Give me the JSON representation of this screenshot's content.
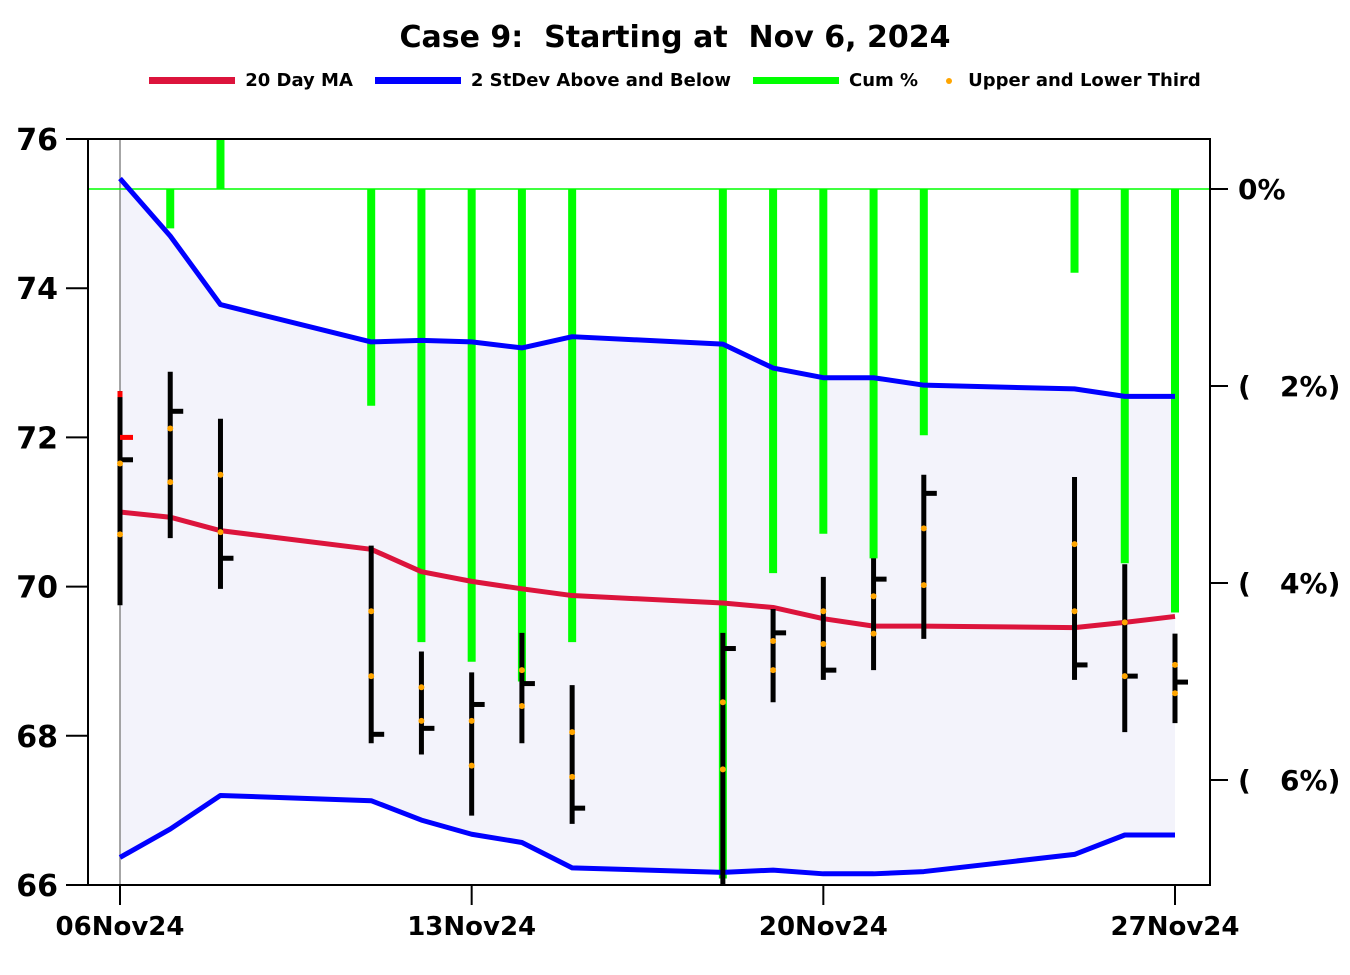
{
  "chart_data": {
    "type": "ohlc",
    "title": "Case 9:  Starting at  Nov 6, 2024",
    "legend": [
      {
        "label": "20 Day MA",
        "color": "#dc143c",
        "kind": "line"
      },
      {
        "label": "2 StDev Above and Below",
        "color": "#0000ff",
        "kind": "line"
      },
      {
        "label": "Cum %",
        "color": "#00ff00",
        "kind": "line"
      },
      {
        "label": "Upper and Lower Third",
        "color": "#ffa500",
        "kind": "dot"
      }
    ],
    "x_ticks": [
      "06Nov24",
      "13Nov24",
      "20Nov24",
      "27Nov24"
    ],
    "x_tick_days": [
      6,
      13,
      20,
      27
    ],
    "x_range": [
      6,
      27
    ],
    "y_left": {
      "range": [
        66,
        76
      ],
      "ticks": [
        "66",
        "68",
        "70",
        "72",
        "74",
        "76"
      ],
      "tick_values": [
        66,
        68,
        70,
        72,
        74,
        76
      ]
    },
    "y_right": {
      "ticks": [
        "0%",
        "(   2%)",
        "(   4%)",
        "(   6%)"
      ],
      "tick_values": [
        0,
        -2,
        -4,
        -6
      ],
      "range_top": 0.5
    },
    "dates": [
      "2024-11-06",
      "2024-11-07",
      "2024-11-08",
      "2024-11-11",
      "2024-11-12",
      "2024-11-13",
      "2024-11-14",
      "2024-11-15",
      "2024-11-18",
      "2024-11-19",
      "2024-11-20",
      "2024-11-21",
      "2024-11-22",
      "2024-11-25",
      "2024-11-26",
      "2024-11-27"
    ],
    "days": [
      6,
      7,
      8,
      11,
      12,
      13,
      14,
      15,
      18,
      19,
      20,
      21,
      22,
      25,
      26,
      27
    ],
    "ohlc": [
      {
        "open": 72.62,
        "high": 72.62,
        "low": 69.75,
        "close": 71.7
      },
      {
        "open": 72.0,
        "high": 72.88,
        "low": 70.65,
        "close": 72.35
      },
      {
        "open": 72.2,
        "high": 72.25,
        "low": 69.97,
        "close": 70.38
      },
      {
        "open": 70.5,
        "high": 70.55,
        "low": 67.9,
        "close": 68.02
      },
      {
        "open": 69.0,
        "high": 69.13,
        "low": 67.75,
        "close": 68.1
      },
      {
        "open": 68.6,
        "high": 68.85,
        "low": 66.93,
        "close": 68.42
      },
      {
        "open": 69.3,
        "high": 69.38,
        "low": 67.9,
        "close": 68.7
      },
      {
        "open": 68.6,
        "high": 68.68,
        "low": 66.82,
        "close": 67.03
      },
      {
        "open": 69.3,
        "high": 69.38,
        "low": 66.0,
        "close": 69.17
      },
      {
        "open": 69.3,
        "high": 69.7,
        "low": 68.45,
        "close": 69.38
      },
      {
        "open": 69.9,
        "high": 70.13,
        "low": 68.75,
        "close": 68.88
      },
      {
        "open": 70.2,
        "high": 70.38,
        "low": 68.88,
        "close": 70.1
      },
      {
        "open": 71.3,
        "high": 71.5,
        "low": 69.3,
        "close": 71.25
      },
      {
        "open": 71.4,
        "high": 71.47,
        "low": 68.75,
        "close": 68.95
      },
      {
        "open": 70.2,
        "high": 70.3,
        "low": 68.05,
        "close": 68.8
      },
      {
        "open": 69.3,
        "high": 69.37,
        "low": 68.17,
        "close": 68.72
      }
    ],
    "ma20": [
      71.0,
      70.93,
      70.75,
      70.5,
      70.2,
      70.07,
      69.97,
      69.88,
      69.78,
      69.72,
      69.57,
      69.47,
      69.47,
      69.45,
      69.52,
      69.6
    ],
    "upper_band": [
      75.47,
      74.7,
      73.78,
      73.28,
      73.3,
      73.28,
      73.2,
      73.35,
      73.25,
      72.93,
      72.8,
      72.8,
      72.7,
      72.65,
      72.55,
      72.55
    ],
    "lower_band": [
      66.37,
      66.75,
      67.2,
      67.13,
      66.87,
      66.68,
      66.57,
      66.23,
      66.17,
      66.2,
      66.15,
      66.15,
      66.18,
      66.41,
      66.67,
      66.67
    ],
    "cum_pct": [
      0,
      -0.4,
      0.5,
      -2.2,
      -4.6,
      -4.8,
      -5.0,
      -4.6,
      -7.0,
      -3.9,
      -3.5,
      -3.75,
      -2.5,
      -0.85,
      -3.8,
      -4.3
    ],
    "upper_third": [
      71.65,
      72.12,
      71.5,
      69.67,
      68.65,
      68.2,
      68.88,
      68.05,
      68.45,
      69.27,
      69.67,
      69.87,
      70.78,
      70.57,
      69.52,
      68.95
    ],
    "lower_third": [
      70.7,
      71.4,
      70.73,
      68.8,
      68.2,
      67.6,
      68.4,
      67.45,
      67.55,
      68.88,
      69.23,
      69.37,
      70.02,
      69.67,
      68.8,
      68.57
    ]
  }
}
